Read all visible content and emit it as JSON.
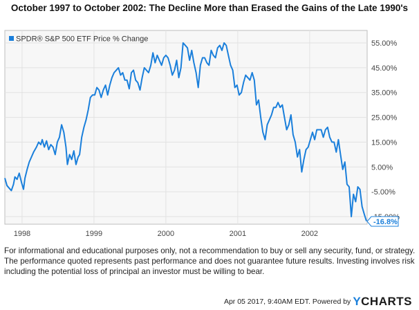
{
  "chart_data": {
    "type": "line",
    "title": "October 1997 to October 2002: The Decline More than Erased the Gains of the Late 1990's",
    "xlabel": "",
    "ylabel": "",
    "legend": {
      "position": "top-left",
      "entries": [
        {
          "name": "SPDR® S&P 500 ETF Price % Change",
          "color": "#1a7fdb"
        }
      ]
    },
    "x_ticks": [
      "1998",
      "1999",
      "2000",
      "2001",
      "2002"
    ],
    "x_range": [
      1997.76,
      2002.8
    ],
    "y_ticks": [
      "55.00%",
      "45.00%",
      "35.00%",
      "25.00%",
      "15.00%",
      "5.00%",
      "-5.00%",
      "-15.00%"
    ],
    "y_tick_values": [
      55,
      45,
      35,
      25,
      15,
      5,
      -5,
      -15
    ],
    "ylim": [
      -18,
      60
    ],
    "grid": true,
    "end_label": "-16.8%",
    "series": [
      {
        "name": "SPDR® S&P 500 ETF Price % Change",
        "color": "#1a7fdb",
        "x": [
          1997.76,
          1997.79,
          1997.82,
          1997.85,
          1997.88,
          1997.9,
          1997.93,
          1997.96,
          1997.99,
          1998.02,
          1998.04,
          1998.07,
          1998.1,
          1998.13,
          1998.16,
          1998.2,
          1998.23,
          1998.26,
          1998.28,
          1998.31,
          1998.34,
          1998.37,
          1998.4,
          1998.43,
          1998.46,
          1998.49,
          1998.52,
          1998.55,
          1998.58,
          1998.61,
          1998.63,
          1998.66,
          1998.69,
          1998.72,
          1998.75,
          1998.78,
          1998.8,
          1998.83,
          1998.86,
          1998.89,
          1998.92,
          1998.95,
          1998.98,
          1999.01,
          1999.04,
          1999.07,
          1999.1,
          1999.13,
          1999.16,
          1999.19,
          1999.22,
          1999.25,
          1999.28,
          1999.31,
          1999.34,
          1999.37,
          1999.4,
          1999.43,
          1999.46,
          1999.49,
          1999.52,
          1999.55,
          1999.58,
          1999.61,
          1999.64,
          1999.67,
          1999.7,
          1999.73,
          1999.76,
          1999.79,
          1999.82,
          1999.85,
          1999.88,
          1999.91,
          1999.94,
          1999.97,
          2000.0,
          2000.03,
          2000.06,
          2000.09,
          2000.12,
          2000.15,
          2000.18,
          2000.21,
          2000.24,
          2000.27,
          2000.3,
          2000.33,
          2000.36,
          2000.39,
          2000.42,
          2000.45,
          2000.48,
          2000.51,
          2000.54,
          2000.57,
          2000.6,
          2000.63,
          2000.66,
          2000.69,
          2000.72,
          2000.75,
          2000.78,
          2000.81,
          2000.84,
          2000.87,
          2000.9,
          2000.93,
          2000.96,
          2000.99,
          2001.02,
          2001.05,
          2001.08,
          2001.11,
          2001.14,
          2001.17,
          2001.2,
          2001.23,
          2001.26,
          2001.29,
          2001.32,
          2001.35,
          2001.38,
          2001.41,
          2001.44,
          2001.47,
          2001.5,
          2001.53,
          2001.56,
          2001.59,
          2001.62,
          2001.65,
          2001.68,
          2001.71,
          2001.74,
          2001.77,
          2001.8,
          2001.83,
          2001.86,
          2001.89,
          2001.92,
          2001.95,
          2001.98,
          2002.01,
          2002.04,
          2002.07,
          2002.1,
          2002.13,
          2002.16,
          2002.19,
          2002.22,
          2002.25,
          2002.28,
          2002.31,
          2002.34,
          2002.37,
          2002.4,
          2002.43,
          2002.46,
          2002.49,
          2002.52,
          2002.55,
          2002.58,
          2002.61,
          2002.64,
          2002.67,
          2002.7,
          2002.73,
          2002.76,
          2002.79
        ],
        "values": [
          0.5,
          -2.5,
          -3.5,
          -4.5,
          -2,
          1,
          0,
          2.5,
          -1,
          -4,
          0.5,
          4,
          7,
          9,
          11,
          13,
          15,
          14,
          16,
          13,
          15.5,
          12,
          14,
          13,
          10,
          15,
          17,
          22,
          19,
          13,
          6,
          10,
          8,
          11.5,
          6,
          9,
          10,
          17,
          21,
          24,
          28,
          33,
          34,
          34,
          37,
          36,
          33,
          36,
          38,
          34,
          38,
          41,
          43,
          44,
          45,
          42,
          43,
          40,
          40,
          36.5,
          43,
          44,
          40,
          39,
          36,
          41,
          45,
          44,
          43,
          46,
          51,
          47,
          50,
          48,
          46,
          49,
          50,
          49,
          46,
          42,
          44,
          48,
          41,
          45,
          55,
          54,
          53,
          48,
          52,
          47,
          43,
          37,
          46,
          49,
          49,
          47,
          46,
          52,
          50,
          49,
          53,
          54,
          52,
          55,
          54,
          50,
          46,
          44,
          37,
          38,
          34,
          35,
          39,
          42,
          41,
          40,
          43,
          40,
          30,
          32,
          25,
          19,
          16,
          22,
          24,
          26,
          29,
          29,
          31,
          29,
          30,
          25,
          20,
          22,
          26,
          18,
          15,
          9,
          12,
          3,
          8,
          12,
          13,
          16,
          19,
          16,
          20,
          20,
          20,
          17,
          20,
          21,
          17,
          15,
          15,
          11,
          16,
          10,
          4,
          7,
          -2,
          -3,
          -15,
          -6,
          -9,
          -3,
          -4,
          -11,
          -14,
          -16.8
        ]
      }
    ]
  },
  "footer": {
    "disclaimer": "For informational and educational purposes only, not a recommendation to buy or sell any security, fund, or strategy. The performance quoted represents past performance and does not guarantee future results. Investing involves risk including the potential loss of principal an investor must be willing to bear.",
    "timestamp": "Apr 05 2017, 9:40AM EDT.",
    "powered_by": "Powered by",
    "brand_y": "Y",
    "brand_rest": "CHARTS"
  }
}
